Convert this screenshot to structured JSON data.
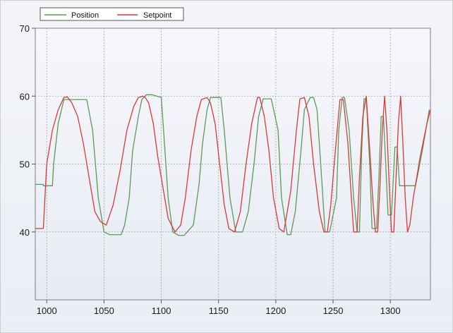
{
  "chart_data": {
    "type": "line",
    "title": "",
    "xlabel": "",
    "ylabel": "",
    "xlim": [
      990,
      1335
    ],
    "ylim": [
      30,
      70
    ],
    "xticks": [
      1000,
      1050,
      1100,
      1150,
      1200,
      1250,
      1300
    ],
    "yticks": [
      40,
      50,
      60,
      70
    ],
    "x_tick_labels": [
      "1000",
      "1050",
      "1100",
      "1150",
      "1200",
      "1250",
      "1300"
    ],
    "y_tick_labels": [
      "40",
      "50",
      "60",
      "70"
    ],
    "grid": true,
    "legend": "top-left",
    "series": [
      {
        "name": "Position",
        "color": "#5a9a5a",
        "x": [
          990,
          997,
          997,
          1005,
          1006,
          1010,
          1015,
          1020,
          1035,
          1040,
          1045,
          1050,
          1055,
          1065,
          1068,
          1072,
          1075,
          1080,
          1083,
          1087,
          1090,
          1092,
          1100,
          1102,
          1106,
          1110,
          1115,
          1120,
          1128,
          1133,
          1136,
          1140,
          1143,
          1147,
          1152,
          1155,
          1160,
          1165,
          1171,
          1176,
          1181,
          1185,
          1189,
          1193,
          1196,
          1202,
          1205,
          1210,
          1213,
          1217,
          1222,
          1225,
          1230,
          1233,
          1236,
          1240,
          1243,
          1247,
          1253,
          1255,
          1258,
          1260,
          1264,
          1268,
          1271,
          1273,
          1275,
          1277,
          1279,
          1282,
          1284,
          1286,
          1288,
          1290,
          1292,
          1294,
          1296,
          1298,
          1301,
          1304,
          1306,
          1308,
          1310,
          1312,
          1316,
          1322,
          1328,
          1334
        ],
        "values": [
          47,
          47,
          46.8,
          46.8,
          50,
          56,
          59.5,
          59.5,
          59.5,
          55,
          45,
          40,
          39.6,
          39.6,
          41,
          45,
          52,
          57,
          59.5,
          60.2,
          60.2,
          60.2,
          59.8,
          55,
          45,
          40,
          39.5,
          39.5,
          41,
          47,
          53,
          58,
          59.8,
          59.8,
          59.8,
          55,
          45,
          40,
          40,
          43,
          50,
          57,
          59.6,
          59.6,
          59.6,
          55,
          45,
          39.6,
          39.6,
          43,
          52,
          58,
          59.8,
          59.8,
          58,
          48,
          40,
          40,
          45,
          55,
          59.8,
          59.8,
          55,
          45,
          40,
          40,
          52,
          59.6,
          59.6,
          50,
          40.5,
          40.5,
          40.5,
          48,
          57,
          57,
          50,
          42.5,
          42.5,
          52.5,
          52.5,
          46.8,
          46.8,
          46.8,
          46.8,
          46.8,
          52,
          58
        ]
      },
      {
        "name": "Setpoint",
        "color": "#d63a3a",
        "x": [
          990,
          995,
          997,
          1000,
          1005,
          1010,
          1015,
          1018,
          1022,
          1027,
          1032,
          1037,
          1042,
          1047,
          1052,
          1058,
          1064,
          1070,
          1076,
          1080,
          1084,
          1086,
          1089,
          1093,
          1097,
          1102,
          1106,
          1112,
          1117,
          1121,
          1126,
          1131,
          1135,
          1140,
          1143,
          1147,
          1151,
          1155,
          1159,
          1164,
          1169,
          1174,
          1179,
          1184,
          1186,
          1190,
          1194,
          1198,
          1203,
          1207,
          1213,
          1218,
          1221,
          1225,
          1229,
          1233,
          1238,
          1242,
          1245,
          1248,
          1252,
          1256,
          1259,
          1263,
          1266,
          1268,
          1271,
          1273,
          1276,
          1279,
          1282,
          1285,
          1287,
          1289,
          1291,
          1293,
          1295,
          1297,
          1299,
          1301,
          1303,
          1305,
          1307,
          1309,
          1311,
          1313,
          1315,
          1317,
          1320,
          1326,
          1332,
          1335
        ],
        "values": [
          40.5,
          40.5,
          40.5,
          50,
          55,
          58,
          59.8,
          59.9,
          59,
          57,
          53,
          48,
          43,
          41.5,
          41,
          44,
          49,
          55,
          58.5,
          59.8,
          60,
          59.8,
          59,
          56,
          51,
          46,
          42,
          40,
          41,
          45,
          52,
          57,
          59.5,
          59.8,
          59,
          56,
          50,
          44,
          40.5,
          40,
          43,
          50,
          56,
          59.8,
          59.8,
          57,
          52,
          45,
          40.5,
          40,
          46,
          55,
          59.6,
          59.8,
          57,
          50,
          43,
          40,
          40,
          44,
          52,
          59.5,
          59.5,
          53,
          45,
          40,
          40,
          48,
          57,
          60,
          52,
          44,
          40,
          40,
          47,
          55,
          60,
          55,
          47,
          40,
          40,
          48,
          56,
          60,
          53,
          45,
          40,
          41,
          45,
          51,
          56,
          58
        ]
      }
    ]
  }
}
